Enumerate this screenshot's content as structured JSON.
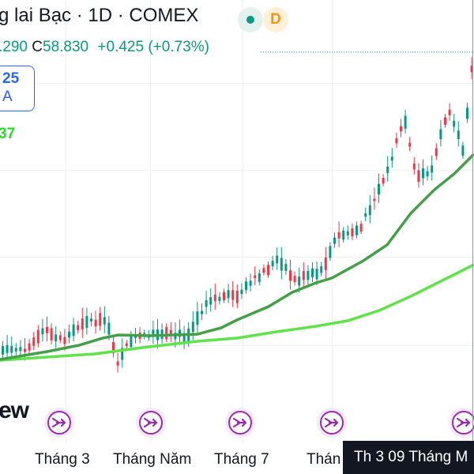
{
  "header": {
    "title": "g lai Bạc · 1D · COMEX",
    "interval_badge": "D"
  },
  "ohlc": {
    "low_fragment": ".290",
    "close_label": "C",
    "close_value": "58.830",
    "change": "+0.425 (+0.73%)"
  },
  "legend": {
    "line1": "25",
    "line2": "A"
  },
  "ma_value": "37",
  "watermark": "ew",
  "x_axis": {
    "labels": [
      "Tháng 3",
      "Tháng Năm",
      "Tháng 7",
      "Thán"
    ]
  },
  "crosshair": {
    "date_label": "Th 3 09 Tháng M"
  },
  "colors": {
    "up": "#089981",
    "down": "#f23645",
    "ma_short": "#43a047",
    "ma_long": "#5fe24a",
    "accent": "#2962ff",
    "event": "#9c27b0"
  },
  "icons": {
    "status": "live-dot-icon",
    "event": "dividend-arrow-icon"
  }
}
